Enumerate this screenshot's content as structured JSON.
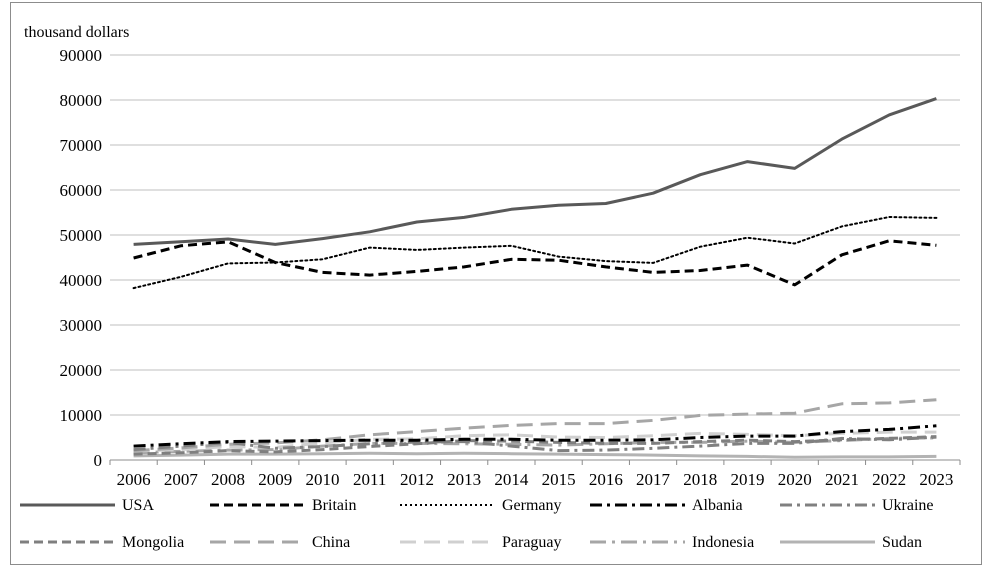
{
  "chart_data": {
    "type": "line",
    "title": "",
    "ylabel": "thousand dollars",
    "xlabel": "",
    "ylim": [
      0,
      90000
    ],
    "yticks": [
      0,
      10000,
      20000,
      30000,
      40000,
      50000,
      60000,
      70000,
      80000,
      90000
    ],
    "grid": "horizontal",
    "legend_position": "bottom",
    "x": [
      "2006",
      "2007",
      "2008",
      "2009",
      "2010",
      "2011",
      "2012",
      "2013",
      "2014",
      "2015",
      "2016",
      "2017",
      "2018",
      "2019",
      "2020",
      "2021",
      "2022",
      "2023"
    ],
    "series": [
      {
        "name": "USA",
        "color": "#595959",
        "dash": "solid",
        "width": 3,
        "values": [
          47900,
          48500,
          49100,
          47900,
          49200,
          50700,
          52900,
          53900,
          55700,
          56600,
          57000,
          59300,
          63400,
          66300,
          64800,
          71300,
          76700,
          80300
        ]
      },
      {
        "name": "Britain",
        "color": "#000000",
        "dash": "dash",
        "width": 3,
        "values": [
          44900,
          47600,
          48500,
          43900,
          41700,
          41100,
          41900,
          42900,
          44600,
          44400,
          42900,
          41700,
          42100,
          43300,
          38900,
          45600,
          48700,
          47700
        ]
      },
      {
        "name": "Germany",
        "color": "#000000",
        "dash": "dot",
        "width": 2,
        "values": [
          38200,
          40700,
          43700,
          43900,
          44600,
          47200,
          46700,
          47200,
          47600,
          45200,
          44200,
          43800,
          47400,
          49400,
          48100,
          51900,
          54000,
          53800
        ]
      },
      {
        "name": "Albania",
        "color": "#000000",
        "dash": "dashdot",
        "width": 3,
        "values": [
          3100,
          3600,
          4100,
          4200,
          4300,
          4400,
          4400,
          4600,
          4600,
          4400,
          4400,
          4500,
          5000,
          5300,
          5300,
          6300,
          6800,
          7600
        ]
      },
      {
        "name": "Ukraine",
        "color": "#808080",
        "dash": "dashdot",
        "width": 3,
        "values": [
          2300,
          3100,
          3900,
          2600,
          3000,
          3600,
          4000,
          4100,
          3100,
          2100,
          2200,
          2600,
          3100,
          3700,
          3700,
          4800,
          4500,
          5100
        ]
      },
      {
        "name": "Mongolia",
        "color": "#7f7f7f",
        "dash": "dash",
        "width": 3,
        "values": [
          1300,
          1600,
          2100,
          1800,
          2300,
          3000,
          3600,
          4300,
          4200,
          3900,
          3700,
          3700,
          4100,
          4400,
          4100,
          4500,
          4800,
          5200
        ]
      },
      {
        "name": "China",
        "color": "#a6a6a6",
        "dash": "longdash",
        "width": 3,
        "values": [
          2100,
          2700,
          3500,
          3800,
          4500,
          5600,
          6300,
          7100,
          7700,
          8100,
          8100,
          8800,
          9900,
          10200,
          10400,
          12500,
          12700,
          13400
        ]
      },
      {
        "name": "Paraguay",
        "color": "#d0d0d0",
        "dash": "longdash",
        "width": 3,
        "values": [
          2000,
          2300,
          3000,
          2800,
          3800,
          4600,
          4700,
          5400,
          5600,
          5100,
          5000,
          5400,
          5900,
          5700,
          5400,
          5900,
          6200,
          6200
        ]
      },
      {
        "name": "Indonesia",
        "color": "#a6a6a6",
        "dash": "longdashdot",
        "width": 3,
        "values": [
          1600,
          1900,
          2200,
          2300,
          3100,
          3700,
          3700,
          3600,
          3500,
          3300,
          3600,
          3900,
          3900,
          4200,
          3900,
          4300,
          4800,
          4900
        ]
      },
      {
        "name": "Sudan",
        "color": "#b3b3b3",
        "dash": "solid",
        "width": 3,
        "values": [
          900,
          1100,
          1300,
          1300,
          1400,
          1500,
          1400,
          1500,
          1400,
          1300,
          1200,
          1100,
          900,
          800,
          600,
          700,
          700,
          800
        ]
      }
    ]
  }
}
